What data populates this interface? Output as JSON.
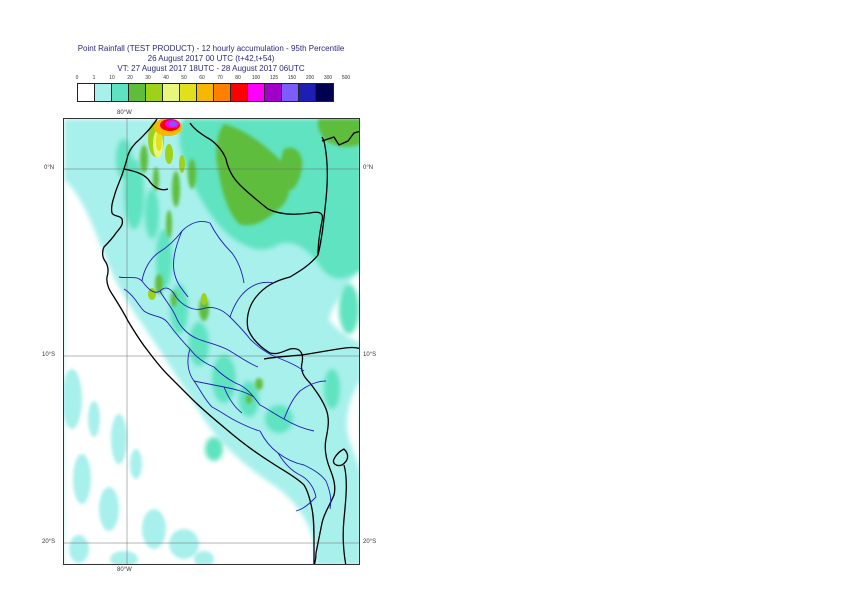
{
  "title": {
    "line1": "Point Rainfall (TEST PRODUCT) - 12 hourly accumulation - 95th Percentile",
    "line2": "26 August 2017 00 UTC (t+42,t+54)",
    "line3": "VT: 27 August 2017 18UTC - 28 August 2017 06UTC"
  },
  "legend": {
    "thresholds": [
      "0",
      "1",
      "10",
      "20",
      "30",
      "40",
      "50",
      "60",
      "70",
      "80",
      "100",
      "125",
      "150",
      "200",
      "300",
      "500"
    ],
    "colors": [
      "#ffffff",
      "#a8f0ec",
      "#5ee3c0",
      "#5fbd3c",
      "#9ed21a",
      "#e8f77a",
      "#e0e01e",
      "#f5b800",
      "#ff7f00",
      "#ff0000",
      "#ff00ff",
      "#a000c8",
      "#7a5cff",
      "#1e1eb4",
      "#000050"
    ]
  },
  "axes": {
    "lon_top": "80°W",
    "lon_bottom": "80°W",
    "lat_left": [
      "0°N",
      "10°S",
      "20°S"
    ],
    "lat_right": [
      "0°N",
      "10°S",
      "20°S"
    ]
  }
}
